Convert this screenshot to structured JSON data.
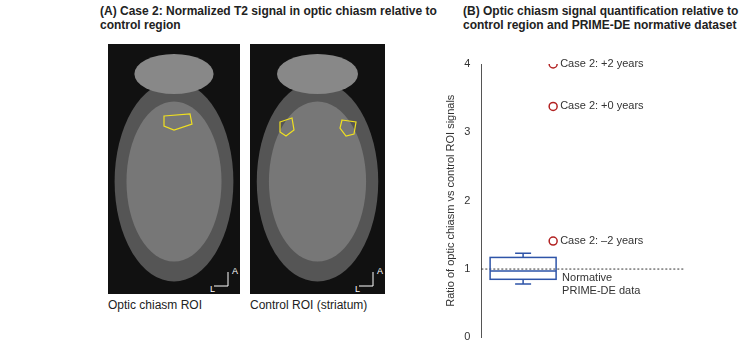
{
  "panel_a": {
    "title": "(A) Case 2: Normalized T2 signal in optic chiasm relative to control region",
    "images": [
      {
        "caption": "Optic chiasm ROI"
      },
      {
        "caption": "Control ROI (striatum)"
      }
    ],
    "direction_marks": [
      "A",
      "L"
    ]
  },
  "chart_data": {
    "type": "box",
    "title": "(B) Optic chiasm signal quantification relative to control region and PRIME-DE normative dataset",
    "y_label": "Ratio of optic chiasm vs control ROI signals",
    "ylim": [
      0,
      4
    ],
    "yticks": [
      0,
      1,
      2,
      3,
      4
    ],
    "grid": false,
    "tick_labels": "y",
    "box": {
      "name": "Normative PRIME-DE data",
      "whisker_low": 0.78,
      "q1": 0.85,
      "median": 0.97,
      "q3": 1.17,
      "whisker_high": 1.23,
      "color": "#2e54a8"
    },
    "reference_line": 1,
    "points": {
      "labels": [
        "Case 2: +2 years",
        "Case 2: +0 years",
        "Case 2: –2 years"
      ],
      "values": [
        4.0,
        3.38,
        1.41
      ],
      "color": "#b22222",
      "marker": "circle"
    }
  }
}
